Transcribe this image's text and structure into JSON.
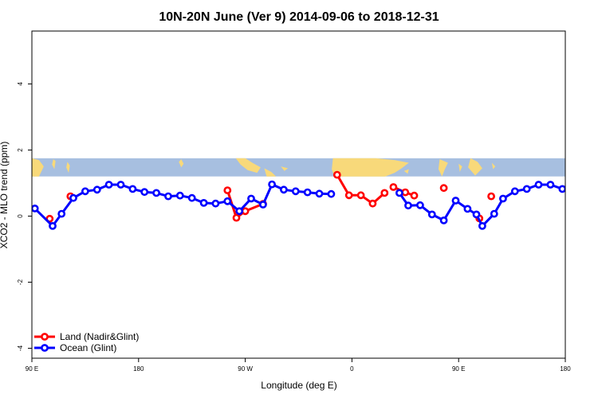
{
  "chart_data": {
    "type": "line",
    "title": "10N-20N June (Ver 9)   2014-09-06 to 2018-12-31",
    "xlabel": "Longitude (deg E)",
    "ylabel": "XCO2 - MLO trend (ppm)",
    "xlim": [
      90,
      540
    ],
    "ylim": [
      -4.3,
      5.6
    ],
    "x_ticks": [
      {
        "value": 90,
        "label": "90 E"
      },
      {
        "value": 180,
        "label": "180"
      },
      {
        "value": 270,
        "label": "90 W"
      },
      {
        "value": 360,
        "label": "0"
      },
      {
        "value": 450,
        "label": "90 E"
      },
      {
        "value": 540,
        "label": "180"
      }
    ],
    "y_ticks": [
      {
        "value": -4,
        "label": "-4"
      },
      {
        "value": -2,
        "label": "-2"
      },
      {
        "value": 0,
        "label": "0"
      },
      {
        "value": 2,
        "label": "2"
      },
      {
        "value": 4,
        "label": "4"
      }
    ],
    "grid": false,
    "legend_position": "bottom-left",
    "map_strip": {
      "y_range": [
        1.2,
        1.75
      ],
      "ocean_color": "#a7bfe0",
      "land_color": "#f8d97a"
    },
    "series": [
      {
        "name": "Land (Nadir&Glint)",
        "color": "#ff0000",
        "points": [
          [
            105,
            -0.08
          ],
          [
            122.5,
            0.6
          ],
          [
            255,
            0.78
          ],
          [
            262.5,
            -0.05
          ],
          [
            270,
            0.15
          ],
          [
            285,
            0.37
          ],
          [
            347.5,
            1.25
          ],
          [
            357.5,
            0.63
          ],
          [
            367.5,
            0.63
          ],
          [
            377.5,
            0.38
          ],
          [
            387.5,
            0.7
          ],
          [
            395,
            0.88
          ],
          [
            405,
            0.72
          ],
          [
            412.5,
            0.62
          ],
          [
            437.5,
            0.85
          ],
          [
            467.5,
            -0.07
          ],
          [
            477.5,
            0.6
          ]
        ],
        "segments": [
          [
            0,
            0
          ],
          [
            1,
            1
          ],
          [
            2,
            5
          ],
          [
            6,
            10
          ],
          [
            11,
            13
          ],
          [
            14,
            14
          ],
          [
            15,
            15
          ],
          [
            16,
            16
          ]
        ]
      },
      {
        "name": "Ocean (Glint)",
        "color": "#0000ff",
        "points": [
          [
            92.5,
            0.23
          ],
          [
            107.5,
            -0.3
          ],
          [
            115,
            0.07
          ],
          [
            125,
            0.55
          ],
          [
            135,
            0.75
          ],
          [
            145,
            0.8
          ],
          [
            155,
            0.95
          ],
          [
            165,
            0.95
          ],
          [
            175,
            0.82
          ],
          [
            185,
            0.73
          ],
          [
            195,
            0.7
          ],
          [
            205,
            0.6
          ],
          [
            215,
            0.62
          ],
          [
            225,
            0.55
          ],
          [
            235,
            0.4
          ],
          [
            245,
            0.38
          ],
          [
            255,
            0.45
          ],
          [
            265,
            0.15
          ],
          [
            275,
            0.53
          ],
          [
            285,
            0.35
          ],
          [
            292.5,
            0.96
          ],
          [
            302.5,
            0.8
          ],
          [
            312.5,
            0.75
          ],
          [
            322.5,
            0.72
          ],
          [
            332.5,
            0.68
          ],
          [
            342.5,
            0.67
          ],
          [
            400,
            0.7
          ],
          [
            407.5,
            0.32
          ],
          [
            417.5,
            0.33
          ],
          [
            427.5,
            0.05
          ],
          [
            437.5,
            -0.13
          ],
          [
            447.5,
            0.47
          ],
          [
            457.5,
            0.22
          ],
          [
            465,
            0.05
          ],
          [
            470,
            -0.3
          ],
          [
            480,
            0.07
          ],
          [
            487.5,
            0.53
          ],
          [
            497.5,
            0.75
          ],
          [
            507.5,
            0.82
          ],
          [
            517.5,
            0.95
          ],
          [
            527.5,
            0.95
          ],
          [
            537.5,
            0.82
          ]
        ],
        "segments": [
          [
            0,
            25
          ],
          [
            26,
            41
          ]
        ]
      }
    ]
  }
}
